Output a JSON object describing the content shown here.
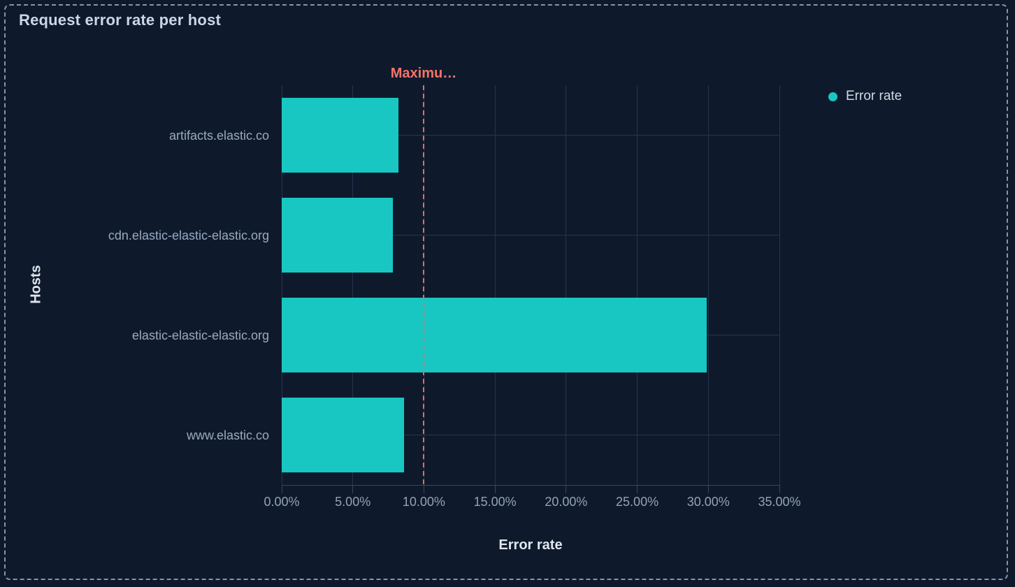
{
  "panel": {
    "title": "Request error rate per host"
  },
  "legend": {
    "items": [
      {
        "label": "Error rate",
        "color": "#18c7c2"
      }
    ]
  },
  "chart_data": {
    "type": "bar",
    "orientation": "horizontal",
    "title": "Request error rate per host",
    "categories": [
      "artifacts.elastic.co",
      "cdn.elastic-elastic-elastic.org",
      "elastic-elastic-elastic.org",
      "www.elastic.co"
    ],
    "series": [
      {
        "name": "Error rate",
        "color": "#18c7c2",
        "values": [
          8.2,
          7.8,
          29.9,
          8.6
        ]
      }
    ],
    "value_unit": "%",
    "xlabel": "Error rate",
    "ylabel": "Hosts",
    "xlim": [
      0,
      35
    ],
    "x_tick_values": [
      0,
      5,
      10,
      15,
      20,
      25,
      30,
      35
    ],
    "x_tick_labels": [
      "0.00%",
      "5.00%",
      "10.00%",
      "15.00%",
      "20.00%",
      "25.00%",
      "30.00%",
      "35.00%"
    ],
    "grid": true,
    "legend_position": "top-right",
    "threshold": {
      "label": "Maximu…",
      "value": 10,
      "color": "#f3685f"
    }
  },
  "colors": {
    "background": "#0e1a2b",
    "panel_border": "#8296b3",
    "bar": "#18c7c2",
    "grid": "#27334d",
    "axis": "#39465f",
    "threshold": "#f3685f",
    "title_text": "#ccd6e5",
    "tick_text": "#93a1ba",
    "category_text": "#9aa9c1",
    "axis_title_text": "#e0e6f0",
    "legend_text": "#d2d9e5"
  }
}
